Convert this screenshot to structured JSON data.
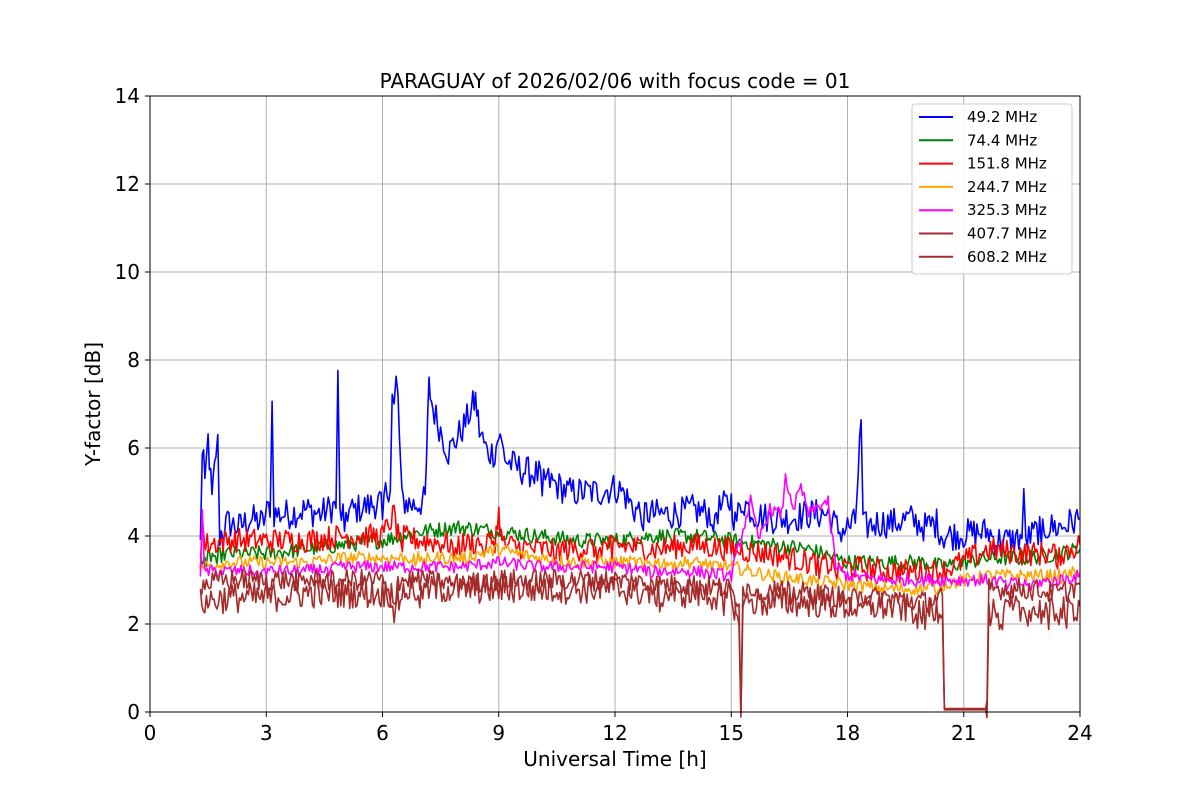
{
  "chart_data": {
    "type": "line",
    "title": "PARAGUAY of 2026/02/06 with focus code = 01",
    "xlabel": "Universal Time [h]",
    "ylabel": "Y-factor [dB]",
    "xlim": [
      0,
      24
    ],
    "ylim": [
      0,
      14
    ],
    "xticks": [
      0,
      3,
      6,
      9,
      12,
      15,
      18,
      21,
      24
    ],
    "yticks": [
      0,
      2,
      4,
      6,
      8,
      10,
      12,
      14
    ],
    "grid": true,
    "legend_position": "top-right",
    "series": [
      {
        "name": " 49.2 MHz",
        "color": "#0000ff",
        "points": [
          [
            1.3,
            3.8
          ],
          [
            1.35,
            6.0
          ],
          [
            1.45,
            5.6
          ],
          [
            1.5,
            6.2
          ],
          [
            1.6,
            4.8
          ],
          [
            1.7,
            5.9
          ],
          [
            1.75,
            6.1
          ],
          [
            1.8,
            4.0
          ],
          [
            2.0,
            4.3
          ],
          [
            2.3,
            4.2
          ],
          [
            2.6,
            4.4
          ],
          [
            2.9,
            4.3
          ],
          [
            3.1,
            4.7
          ],
          [
            3.15,
            7.0
          ],
          [
            3.2,
            4.5
          ],
          [
            3.6,
            4.5
          ],
          [
            4.0,
            4.6
          ],
          [
            4.4,
            4.5
          ],
          [
            4.8,
            4.7
          ],
          [
            4.85,
            7.55
          ],
          [
            4.9,
            4.5
          ],
          [
            5.3,
            4.6
          ],
          [
            5.7,
            4.7
          ],
          [
            6.0,
            4.8
          ],
          [
            6.2,
            5.2
          ],
          [
            6.25,
            7.2
          ],
          [
            6.3,
            6.9
          ],
          [
            6.35,
            7.5
          ],
          [
            6.4,
            7.1
          ],
          [
            6.5,
            4.8
          ],
          [
            6.8,
            4.7
          ],
          [
            7.1,
            4.8
          ],
          [
            7.2,
            7.4
          ],
          [
            7.3,
            6.9
          ],
          [
            7.5,
            6.4
          ],
          [
            7.7,
            5.9
          ],
          [
            7.9,
            6.2
          ],
          [
            8.1,
            6.5
          ],
          [
            8.3,
            6.9
          ],
          [
            8.4,
            7.1
          ],
          [
            8.5,
            6.4
          ],
          [
            8.7,
            5.9
          ],
          [
            8.9,
            5.9
          ],
          [
            9.0,
            6.3
          ],
          [
            9.2,
            5.7
          ],
          [
            9.6,
            5.5
          ],
          [
            10.0,
            5.4
          ],
          [
            10.4,
            5.2
          ],
          [
            10.8,
            5.0
          ],
          [
            11.2,
            5.0
          ],
          [
            11.6,
            5.0
          ],
          [
            12.0,
            5.1
          ],
          [
            12.2,
            5.0
          ],
          [
            12.5,
            4.6
          ],
          [
            13.0,
            4.5
          ],
          [
            13.5,
            4.5
          ],
          [
            14.0,
            4.6
          ],
          [
            14.5,
            4.5
          ],
          [
            15.0,
            4.8
          ],
          [
            15.1,
            4.3
          ],
          [
            15.3,
            4.8
          ],
          [
            15.6,
            4.5
          ],
          [
            16.0,
            4.4
          ],
          [
            16.5,
            4.4
          ],
          [
            17.0,
            4.5
          ],
          [
            17.5,
            4.5
          ],
          [
            17.8,
            4.1
          ],
          [
            18.2,
            4.3
          ],
          [
            18.35,
            6.6
          ],
          [
            18.4,
            4.2
          ],
          [
            18.8,
            4.3
          ],
          [
            19.2,
            4.3
          ],
          [
            19.6,
            4.4
          ],
          [
            20.0,
            4.2
          ],
          [
            20.3,
            4.3
          ],
          [
            20.45,
            4.0
          ],
          [
            21.65,
            4.1
          ],
          [
            21.8,
            3.9
          ],
          [
            22.3,
            3.9
          ],
          [
            22.5,
            4.0
          ],
          [
            22.55,
            4.8
          ],
          [
            22.6,
            3.9
          ],
          [
            23.0,
            4.2
          ],
          [
            23.5,
            4.2
          ],
          [
            24.0,
            4.4
          ]
        ]
      },
      {
        "name": " 74.4 MHz",
        "color": "#008000",
        "points": [
          [
            1.3,
            3.5
          ],
          [
            2.0,
            3.6
          ],
          [
            3.0,
            3.6
          ],
          [
            4.0,
            3.7
          ],
          [
            5.0,
            3.8
          ],
          [
            6.0,
            3.9
          ],
          [
            7.0,
            4.1
          ],
          [
            8.0,
            4.2
          ],
          [
            9.0,
            4.1
          ],
          [
            10.0,
            4.0
          ],
          [
            11.0,
            3.9
          ],
          [
            12.0,
            3.9
          ],
          [
            13.0,
            4.0
          ],
          [
            14.0,
            4.0
          ],
          [
            15.0,
            3.9
          ],
          [
            16.0,
            3.8
          ],
          [
            17.0,
            3.7
          ],
          [
            18.0,
            3.4
          ],
          [
            19.0,
            3.4
          ],
          [
            20.0,
            3.4
          ],
          [
            20.45,
            3.3
          ],
          [
            21.65,
            3.5
          ],
          [
            22.5,
            3.5
          ],
          [
            23.5,
            3.6
          ],
          [
            24.0,
            3.7
          ]
        ]
      },
      {
        "name": " 151.8 MHz",
        "color": "#ff0000",
        "points": [
          [
            1.3,
            3.5
          ],
          [
            1.35,
            4.4
          ],
          [
            1.4,
            3.8
          ],
          [
            2.0,
            3.9
          ],
          [
            3.0,
            3.9
          ],
          [
            4.0,
            3.9
          ],
          [
            5.0,
            4.0
          ],
          [
            6.0,
            4.0
          ],
          [
            6.3,
            4.5
          ],
          [
            6.4,
            4.0
          ],
          [
            7.0,
            3.9
          ],
          [
            8.0,
            3.8
          ],
          [
            8.9,
            3.9
          ],
          [
            9.0,
            4.5
          ],
          [
            9.1,
            3.8
          ],
          [
            10.0,
            3.7
          ],
          [
            11.0,
            3.7
          ],
          [
            12.0,
            3.8
          ],
          [
            13.0,
            3.7
          ],
          [
            14.0,
            3.8
          ],
          [
            15.0,
            3.7
          ],
          [
            16.0,
            3.6
          ],
          [
            17.0,
            3.4
          ],
          [
            18.0,
            3.3
          ],
          [
            19.0,
            3.2
          ],
          [
            20.0,
            3.2
          ],
          [
            20.45,
            3.2
          ],
          [
            21.65,
            3.7
          ],
          [
            22.5,
            3.6
          ],
          [
            23.5,
            3.6
          ],
          [
            24.0,
            3.8
          ]
        ]
      },
      {
        "name": " 244.7 MHz",
        "color": "#ffa500",
        "points": [
          [
            1.3,
            3.3
          ],
          [
            2.0,
            3.4
          ],
          [
            3.0,
            3.4
          ],
          [
            4.0,
            3.4
          ],
          [
            5.0,
            3.5
          ],
          [
            6.0,
            3.5
          ],
          [
            7.0,
            3.5
          ],
          [
            8.0,
            3.5
          ],
          [
            9.0,
            3.7
          ],
          [
            10.0,
            3.5
          ],
          [
            11.0,
            3.4
          ],
          [
            12.0,
            3.4
          ],
          [
            13.0,
            3.4
          ],
          [
            14.0,
            3.4
          ],
          [
            15.0,
            3.3
          ],
          [
            16.0,
            3.1
          ],
          [
            17.0,
            3.0
          ],
          [
            18.0,
            2.9
          ],
          [
            19.0,
            2.8
          ],
          [
            20.0,
            2.8
          ],
          [
            20.45,
            2.9
          ],
          [
            21.65,
            3.1
          ],
          [
            22.5,
            3.1
          ],
          [
            23.5,
            3.1
          ],
          [
            24.0,
            3.2
          ]
        ]
      },
      {
        "name": " 325.3 MHz",
        "color": "#ff00ff",
        "points": [
          [
            1.3,
            3.1
          ],
          [
            1.35,
            4.5
          ],
          [
            1.4,
            3.2
          ],
          [
            2.0,
            3.2
          ],
          [
            3.0,
            3.2
          ],
          [
            4.0,
            3.2
          ],
          [
            5.0,
            3.3
          ],
          [
            6.0,
            3.3
          ],
          [
            7.0,
            3.3
          ],
          [
            8.0,
            3.3
          ],
          [
            9.0,
            3.4
          ],
          [
            10.0,
            3.3
          ],
          [
            11.0,
            3.3
          ],
          [
            12.0,
            3.3
          ],
          [
            13.0,
            3.2
          ],
          [
            14.0,
            3.2
          ],
          [
            15.0,
            3.1
          ],
          [
            15.5,
            4.8
          ],
          [
            15.7,
            3.9
          ],
          [
            16.0,
            4.6
          ],
          [
            16.3,
            4.5
          ],
          [
            16.4,
            5.3
          ],
          [
            16.6,
            4.7
          ],
          [
            16.8,
            5.1
          ],
          [
            17.0,
            4.5
          ],
          [
            17.3,
            4.7
          ],
          [
            17.5,
            4.8
          ],
          [
            17.7,
            3.3
          ],
          [
            18.0,
            3.1
          ],
          [
            19.0,
            3.0
          ],
          [
            20.0,
            3.0
          ],
          [
            20.45,
            3.0
          ],
          [
            21.65,
            3.0
          ],
          [
            22.5,
            2.9
          ],
          [
            23.5,
            3.0
          ],
          [
            24.0,
            3.1
          ]
        ]
      },
      {
        "name": " 407.7 MHz",
        "color": "#a52a2a",
        "points": [
          [
            1.3,
            2.5
          ],
          [
            2.0,
            2.6
          ],
          [
            3.0,
            2.6
          ],
          [
            4.0,
            2.7
          ],
          [
            5.0,
            2.7
          ],
          [
            6.0,
            2.7
          ],
          [
            7.0,
            2.8
          ],
          [
            8.0,
            2.8
          ],
          [
            9.0,
            2.8
          ],
          [
            10.0,
            2.8
          ],
          [
            11.0,
            2.8
          ],
          [
            12.0,
            2.8
          ],
          [
            13.0,
            2.7
          ],
          [
            14.0,
            2.7
          ],
          [
            15.0,
            2.6
          ],
          [
            15.2,
            2.2
          ],
          [
            15.25,
            0.2
          ],
          [
            15.3,
            2.5
          ],
          [
            16.0,
            2.5
          ],
          [
            17.0,
            2.5
          ],
          [
            18.0,
            2.4
          ],
          [
            19.0,
            2.4
          ],
          [
            20.0,
            2.3
          ],
          [
            20.45,
            2.4
          ],
          [
            20.5,
            0.08
          ],
          [
            21.6,
            0.08
          ],
          [
            21.65,
            2.3
          ],
          [
            22.5,
            2.3
          ],
          [
            23.5,
            2.3
          ],
          [
            24.0,
            2.4
          ]
        ]
      },
      {
        "name": " 608.2 MHz",
        "color": "#a52a2a",
        "points": [
          [
            1.3,
            2.9
          ],
          [
            2.0,
            3.0
          ],
          [
            3.0,
            3.0
          ],
          [
            4.0,
            3.0
          ],
          [
            5.0,
            3.0
          ],
          [
            6.0,
            3.0
          ],
          [
            6.3,
            2.2
          ],
          [
            6.4,
            3.0
          ],
          [
            7.0,
            3.0
          ],
          [
            8.0,
            2.9
          ],
          [
            9.0,
            3.0
          ],
          [
            10.0,
            3.0
          ],
          [
            11.0,
            3.0
          ],
          [
            12.0,
            3.0
          ],
          [
            13.0,
            2.9
          ],
          [
            14.0,
            2.9
          ],
          [
            15.0,
            2.8
          ],
          [
            15.2,
            2.2
          ],
          [
            15.25,
            0.15
          ],
          [
            15.3,
            2.8
          ],
          [
            16.0,
            2.8
          ],
          [
            17.0,
            2.7
          ],
          [
            18.0,
            2.6
          ],
          [
            19.0,
            2.6
          ],
          [
            20.0,
            2.5
          ],
          [
            20.45,
            2.6
          ],
          [
            20.5,
            0.05
          ],
          [
            21.6,
            0.05
          ],
          [
            21.65,
            2.8
          ],
          [
            22.5,
            2.8
          ],
          [
            23.5,
            2.7
          ],
          [
            24.0,
            2.9
          ]
        ]
      }
    ]
  }
}
